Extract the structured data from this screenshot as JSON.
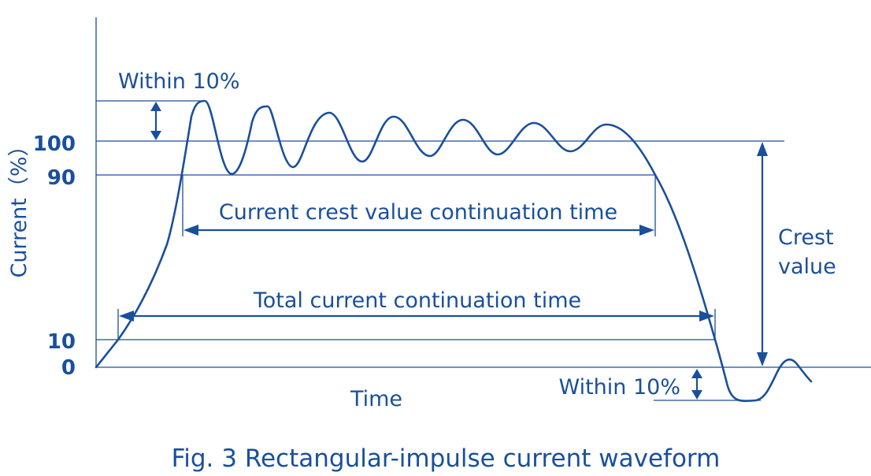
{
  "axis": {
    "y_label": "Current（%）",
    "x_label": "Time",
    "ticks": [
      "100",
      "90",
      "10",
      "0"
    ]
  },
  "annotations": {
    "overshoot_top": "Within 10%",
    "overshoot_bottom": "Within 10%",
    "crest_continuation": "Current crest value continuation time",
    "total_continuation": "Total current continuation time",
    "crest_value_line1": "Crest",
    "crest_value_line2": "value"
  },
  "caption": "Fig. 3 Rectangular-impulse current waveform",
  "colors": {
    "ink": "#1a4f9c",
    "background": "#ffffff"
  }
}
